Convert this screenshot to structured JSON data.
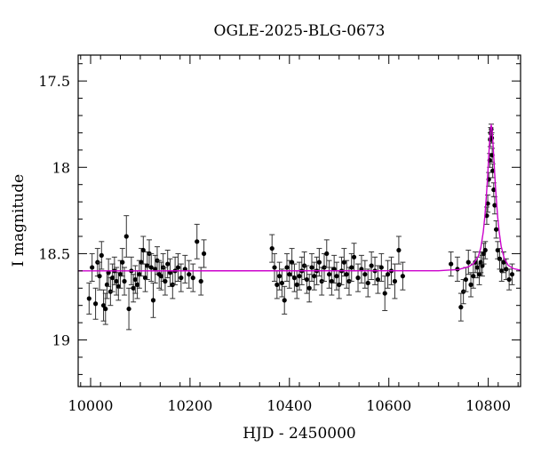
{
  "chart_data": {
    "type": "scatter",
    "title": "OGLE-2025-BLG-0673",
    "xlabel": "HJD - 2450000",
    "ylabel": "I magnitude",
    "xlim": [
      9975,
      10865
    ],
    "ylim": [
      19.27,
      17.35
    ],
    "y_inverted": true,
    "xticks": [
      10000,
      10200,
      10400,
      10600,
      10800
    ],
    "xtick_labels": [
      "10000",
      "10200",
      "10400",
      "10600",
      "10800"
    ],
    "yticks": [
      17.5,
      18,
      18.5,
      19
    ],
    "ytick_labels": [
      "17.5",
      "18",
      "18.5",
      "19"
    ],
    "grid": false,
    "legend": "none",
    "colors": {
      "points": "#000000",
      "errorbars": "#333333",
      "model": "#cc00cc"
    },
    "model_curve": {
      "baseline": 18.6,
      "t0": 10806,
      "u0": 0.1,
      "tE": 13,
      "x": [
        9975,
        10700,
        10740,
        10760,
        10770,
        10780,
        10785,
        10790,
        10793,
        10796,
        10798,
        10800,
        10802,
        10804,
        10805,
        10806,
        10807,
        10808,
        10810,
        10812,
        10814,
        10816,
        10819,
        10822,
        10826,
        10832,
        10840,
        10850,
        10865
      ],
      "y": [
        18.6,
        18.599,
        18.592,
        18.576,
        18.559,
        18.515,
        18.466,
        18.374,
        18.289,
        18.175,
        18.088,
        17.987,
        17.885,
        17.796,
        17.767,
        17.757,
        17.767,
        17.796,
        17.885,
        17.987,
        18.088,
        18.175,
        18.289,
        18.374,
        18.458,
        18.526,
        18.567,
        18.586,
        18.596
      ]
    },
    "points": {
      "hjd": [
        9997,
        10003,
        10010,
        10014,
        10018,
        10022,
        10026,
        10030,
        10033,
        10036,
        10040,
        10044,
        10048,
        10052,
        10056,
        10060,
        10064,
        10068,
        10072,
        10077,
        10082,
        10086,
        10090,
        10094,
        10098,
        10102,
        10106,
        10110,
        10114,
        10118,
        10122,
        10126,
        10130,
        10134,
        10138,
        10142,
        10146,
        10150,
        10155,
        10160,
        10165,
        10170,
        10176,
        10182,
        10190,
        10198,
        10206,
        10214,
        10222,
        10228,
        10365,
        10370,
        10375,
        10380,
        10385,
        10390,
        10395,
        10400,
        10405,
        10410,
        10415,
        10420,
        10425,
        10430,
        10435,
        10440,
        10445,
        10450,
        10455,
        10460,
        10465,
        10470,
        10475,
        10480,
        10485,
        10490,
        10495,
        10500,
        10505,
        10510,
        10515,
        10520,
        10525,
        10530,
        10538,
        10545,
        10552,
        10558,
        10565,
        10572,
        10578,
        10585,
        10592,
        10598,
        10605,
        10612,
        10620,
        10628,
        10725,
        10738,
        10745,
        10750,
        10755,
        10760,
        10765,
        10770,
        10774,
        10778,
        10782,
        10785,
        10788,
        10791,
        10794,
        10797,
        10799,
        10801,
        10803,
        10804,
        10805,
        10806,
        10807,
        10808,
        10809,
        10811,
        10813,
        10816,
        10819,
        10823,
        10827,
        10831,
        10836,
        10842,
        10848
      ],
      "mag": [
        18.76,
        18.58,
        18.79,
        18.55,
        18.63,
        18.51,
        18.8,
        18.82,
        18.68,
        18.61,
        18.72,
        18.64,
        18.6,
        18.66,
        18.69,
        18.62,
        18.55,
        18.66,
        18.4,
        18.82,
        18.6,
        18.7,
        18.65,
        18.68,
        18.62,
        18.55,
        18.48,
        18.64,
        18.57,
        18.5,
        18.58,
        18.77,
        18.59,
        18.54,
        18.62,
        18.63,
        18.58,
        18.66,
        18.56,
        18.61,
        18.68,
        18.6,
        18.58,
        18.64,
        18.59,
        18.62,
        18.64,
        18.43,
        18.66,
        18.5,
        18.47,
        18.58,
        18.68,
        18.63,
        18.67,
        18.77,
        18.58,
        18.62,
        18.55,
        18.64,
        18.68,
        18.63,
        18.6,
        18.57,
        18.65,
        18.7,
        18.58,
        18.63,
        18.6,
        18.55,
        18.66,
        18.58,
        18.5,
        18.62,
        18.66,
        18.59,
        18.63,
        18.68,
        18.6,
        18.55,
        18.62,
        18.66,
        18.58,
        18.52,
        18.64,
        18.59,
        18.62,
        18.67,
        18.57,
        18.6,
        18.65,
        18.58,
        18.73,
        18.62,
        18.6,
        18.66,
        18.48,
        18.63,
        18.56,
        18.59,
        18.81,
        18.72,
        18.65,
        18.55,
        18.68,
        18.63,
        18.55,
        18.58,
        18.62,
        18.55,
        18.57,
        18.5,
        18.48,
        18.28,
        18.21,
        18.07,
        17.96,
        17.84,
        17.8,
        17.78,
        17.83,
        17.93,
        18.02,
        18.13,
        18.22,
        18.36,
        18.48,
        18.53,
        18.6,
        18.55,
        18.59,
        18.65,
        18.62
      ],
      "err": [
        0.09,
        0.08,
        0.09,
        0.08,
        0.08,
        0.08,
        0.09,
        0.09,
        0.08,
        0.08,
        0.08,
        0.08,
        0.08,
        0.08,
        0.08,
        0.08,
        0.08,
        0.08,
        0.12,
        0.12,
        0.08,
        0.08,
        0.08,
        0.08,
        0.08,
        0.08,
        0.08,
        0.08,
        0.08,
        0.08,
        0.08,
        0.1,
        0.08,
        0.08,
        0.08,
        0.08,
        0.08,
        0.08,
        0.08,
        0.08,
        0.08,
        0.08,
        0.08,
        0.08,
        0.08,
        0.08,
        0.08,
        0.1,
        0.08,
        0.08,
        0.08,
        0.08,
        0.08,
        0.08,
        0.08,
        0.08,
        0.08,
        0.08,
        0.08,
        0.08,
        0.08,
        0.08,
        0.08,
        0.08,
        0.08,
        0.08,
        0.08,
        0.08,
        0.08,
        0.08,
        0.08,
        0.08,
        0.08,
        0.08,
        0.08,
        0.08,
        0.08,
        0.08,
        0.08,
        0.08,
        0.08,
        0.08,
        0.08,
        0.08,
        0.08,
        0.08,
        0.08,
        0.08,
        0.08,
        0.08,
        0.08,
        0.08,
        0.1,
        0.08,
        0.08,
        0.1,
        0.08,
        0.08,
        0.07,
        0.07,
        0.08,
        0.07,
        0.07,
        0.07,
        0.07,
        0.07,
        0.06,
        0.06,
        0.06,
        0.06,
        0.06,
        0.06,
        0.05,
        0.05,
        0.05,
        0.04,
        0.04,
        0.04,
        0.03,
        0.03,
        0.03,
        0.04,
        0.04,
        0.04,
        0.05,
        0.05,
        0.05,
        0.06,
        0.06,
        0.06,
        0.06,
        0.06,
        0.06
      ]
    }
  }
}
